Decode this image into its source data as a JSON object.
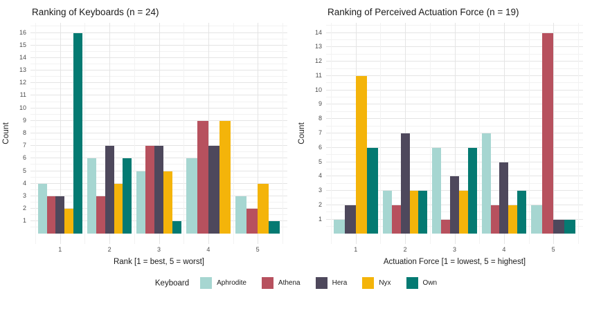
{
  "figure": {
    "background": "#ffffff"
  },
  "legend": {
    "title": "Keyboard",
    "entries": [
      {
        "label": "Aphrodite",
        "color": "#a6d6d1"
      },
      {
        "label": "Athena",
        "color": "#b7515e"
      },
      {
        "label": "Hera",
        "color": "#4e485c"
      },
      {
        "label": "Nyx",
        "color": "#f4b40a"
      },
      {
        "label": "Own",
        "color": "#047a72"
      }
    ],
    "position": "bottom"
  },
  "chart_data": [
    {
      "type": "bar",
      "title": "Ranking of Keyboards (n = 24)",
      "xlabel": "Rank [1 = best, 5 = worst]",
      "ylabel": "Count",
      "categories": [
        "1",
        "2",
        "3",
        "4",
        "5"
      ],
      "ylim": [
        0,
        16
      ],
      "ytick_step": 1,
      "grid": true,
      "series": [
        {
          "name": "Aphrodite",
          "values": [
            4,
            6,
            5,
            6,
            3
          ]
        },
        {
          "name": "Athena",
          "values": [
            3,
            3,
            7,
            9,
            2
          ]
        },
        {
          "name": "Hera",
          "values": [
            3,
            7,
            7,
            7,
            null
          ]
        },
        {
          "name": "Nyx",
          "values": [
            2,
            4,
            5,
            9,
            4
          ]
        },
        {
          "name": "Own",
          "values": [
            16,
            6,
            1,
            null,
            1
          ]
        }
      ]
    },
    {
      "type": "bar",
      "title": "Ranking of Perceived Actuation Force (n = 19)",
      "xlabel": "Actuation Force [1 = lowest, 5 = highest]",
      "ylabel": "Count",
      "categories": [
        "1",
        "2",
        "3",
        "4",
        "5"
      ],
      "ylim": [
        0,
        14
      ],
      "ytick_step": 1,
      "grid": true,
      "series": [
        {
          "name": "Aphrodite",
          "values": [
            1,
            3,
            6,
            7,
            2
          ]
        },
        {
          "name": "Athena",
          "values": [
            null,
            2,
            1,
            2,
            14
          ]
        },
        {
          "name": "Hera",
          "values": [
            2,
            7,
            4,
            5,
            1
          ]
        },
        {
          "name": "Nyx",
          "values": [
            11,
            3,
            3,
            2,
            null
          ]
        },
        {
          "name": "Own",
          "values": [
            6,
            3,
            6,
            3,
            1
          ]
        }
      ]
    }
  ]
}
